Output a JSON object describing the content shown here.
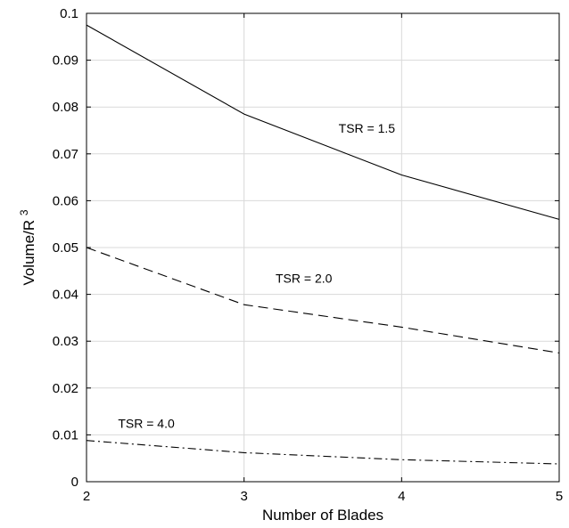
{
  "chart_data": {
    "type": "line",
    "xlabel": "Number of Blades",
    "ylabel_main": "Volume/R",
    "ylabel_superscript": "3",
    "x": [
      2,
      3,
      4,
      5
    ],
    "xlim": [
      2,
      5
    ],
    "ylim": [
      0,
      0.1
    ],
    "xticks": [
      "2",
      "3",
      "4",
      "5"
    ],
    "yticks": [
      "0",
      "0.01",
      "0.02",
      "0.03",
      "0.04",
      "0.05",
      "0.06",
      "0.07",
      "0.08",
      "0.09",
      "0.1"
    ],
    "grid": true,
    "series": [
      {
        "values": [
          0.0975,
          0.0785,
          0.0655,
          0.056
        ],
        "line_style": "solid",
        "color": "#000000"
      },
      {
        "values": [
          0.05,
          0.0378,
          0.033,
          0.0275
        ],
        "line_style": "dashed",
        "color": "#000000"
      },
      {
        "values": [
          0.0088,
          0.0062,
          0.0047,
          0.0038
        ],
        "line_style": "dash-dot",
        "color": "#000000"
      }
    ],
    "annotations": [
      {
        "text": "TSR = 1.5",
        "x": 3.6,
        "y": 0.0745
      },
      {
        "text": "TSR = 2.0",
        "x": 3.2,
        "y": 0.0425
      },
      {
        "text": "TSR = 4.0",
        "x": 2.2,
        "y": 0.0115
      }
    ]
  }
}
